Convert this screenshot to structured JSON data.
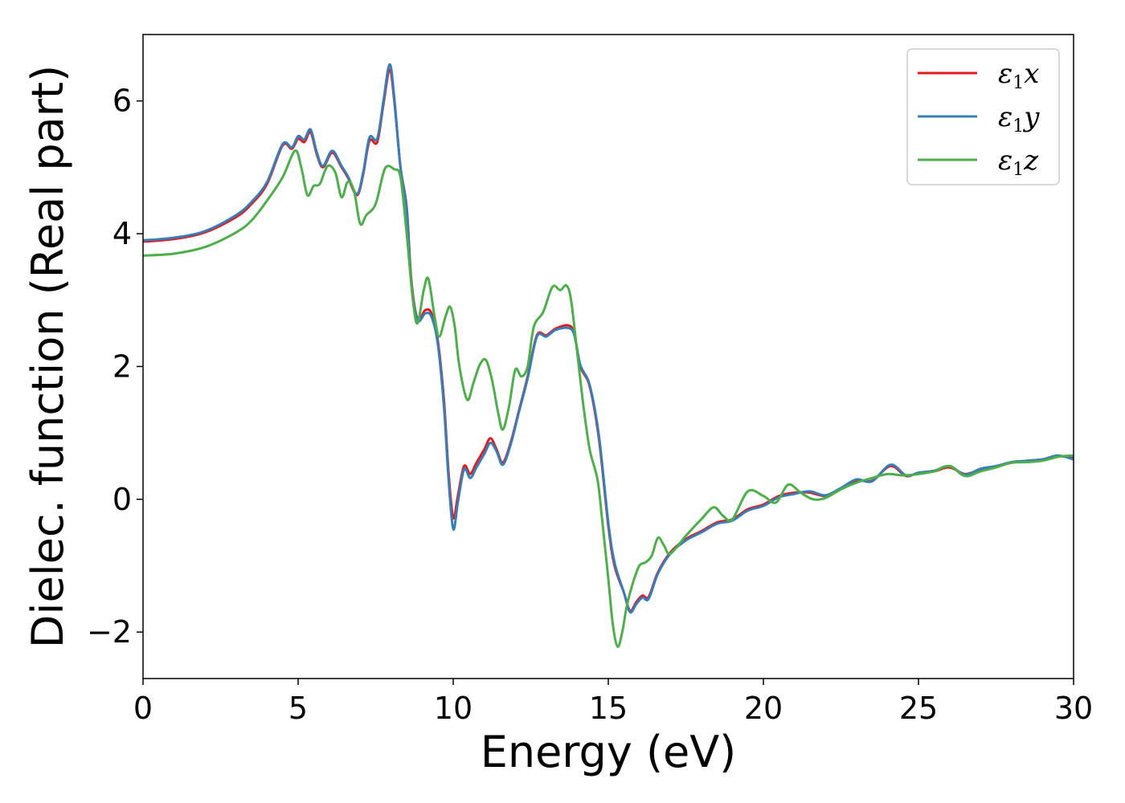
{
  "chart_data": {
    "type": "line",
    "xlabel": "Energy (eV)",
    "ylabel": "Dielec. function (Real part)",
    "xlim": [
      0,
      30
    ],
    "ylim": [
      -2.7,
      7.0
    ],
    "xticks": [
      0,
      5,
      10,
      15,
      20,
      25,
      30
    ],
    "yticks": [
      -2,
      0,
      2,
      4,
      6
    ],
    "xtick_labels": [
      "0",
      "5",
      "10",
      "15",
      "20",
      "25",
      "30"
    ],
    "ytick_labels": [
      "−2",
      "0",
      "2",
      "4",
      "6"
    ],
    "grid": false,
    "legend_position": "top-right",
    "series": [
      {
        "name": "ε1x",
        "legend_main": "ε",
        "legend_sub": "1",
        "legend_var": "x",
        "color": "#e41a1c",
        "points": [
          [
            0,
            3.88
          ],
          [
            1,
            3.92
          ],
          [
            2,
            4.02
          ],
          [
            3,
            4.25
          ],
          [
            3.5,
            4.45
          ],
          [
            4,
            4.75
          ],
          [
            4.5,
            5.33
          ],
          [
            4.8,
            5.28
          ],
          [
            5.0,
            5.43
          ],
          [
            5.2,
            5.38
          ],
          [
            5.4,
            5.53
          ],
          [
            5.6,
            5.2
          ],
          [
            5.8,
            5.0
          ],
          [
            6.1,
            5.22
          ],
          [
            6.4,
            5.0
          ],
          [
            6.6,
            4.85
          ],
          [
            6.9,
            4.58
          ],
          [
            7.1,
            4.9
          ],
          [
            7.3,
            5.4
          ],
          [
            7.55,
            5.38
          ],
          [
            7.75,
            5.95
          ],
          [
            7.95,
            6.47
          ],
          [
            8.1,
            6.0
          ],
          [
            8.3,
            5.0
          ],
          [
            8.5,
            4.4
          ],
          [
            8.65,
            3.3
          ],
          [
            8.85,
            2.72
          ],
          [
            9.1,
            2.85
          ],
          [
            9.3,
            2.8
          ],
          [
            9.5,
            2.4
          ],
          [
            9.7,
            1.5
          ],
          [
            9.85,
            0.4
          ],
          [
            10.0,
            -0.28
          ],
          [
            10.15,
            0.05
          ],
          [
            10.35,
            0.5
          ],
          [
            10.55,
            0.38
          ],
          [
            10.75,
            0.55
          ],
          [
            11.0,
            0.75
          ],
          [
            11.2,
            0.92
          ],
          [
            11.4,
            0.75
          ],
          [
            11.6,
            0.55
          ],
          [
            11.85,
            0.85
          ],
          [
            12.1,
            1.3
          ],
          [
            12.4,
            1.85
          ],
          [
            12.7,
            2.47
          ],
          [
            13.0,
            2.47
          ],
          [
            13.3,
            2.57
          ],
          [
            13.7,
            2.62
          ],
          [
            13.9,
            2.5
          ],
          [
            14.1,
            2.0
          ],
          [
            14.4,
            1.7
          ],
          [
            14.7,
            0.9
          ],
          [
            15.0,
            -0.4
          ],
          [
            15.2,
            -1.0
          ],
          [
            15.5,
            -1.4
          ],
          [
            15.7,
            -1.68
          ],
          [
            15.9,
            -1.55
          ],
          [
            16.1,
            -1.45
          ],
          [
            16.3,
            -1.47
          ],
          [
            16.6,
            -1.1
          ],
          [
            17.0,
            -0.8
          ],
          [
            17.5,
            -0.6
          ],
          [
            18.0,
            -0.48
          ],
          [
            18.5,
            -0.35
          ],
          [
            19.0,
            -0.3
          ],
          [
            19.5,
            -0.15
          ],
          [
            20.0,
            -0.08
          ],
          [
            20.5,
            0.05
          ],
          [
            21.0,
            0.1
          ],
          [
            21.5,
            0.1
          ],
          [
            22.0,
            0.05
          ],
          [
            22.5,
            0.15
          ],
          [
            23.0,
            0.28
          ],
          [
            23.5,
            0.28
          ],
          [
            24.1,
            0.5
          ],
          [
            24.6,
            0.35
          ],
          [
            25.0,
            0.4
          ],
          [
            25.5,
            0.42
          ],
          [
            26.0,
            0.48
          ],
          [
            26.5,
            0.38
          ],
          [
            27.0,
            0.45
          ],
          [
            27.5,
            0.5
          ],
          [
            28.0,
            0.55
          ],
          [
            28.5,
            0.58
          ],
          [
            29.0,
            0.6
          ],
          [
            29.5,
            0.65
          ],
          [
            30,
            0.62
          ]
        ]
      },
      {
        "name": "ε1y",
        "legend_main": "ε",
        "legend_sub": "1",
        "legend_var": "y",
        "color": "#377eb8",
        "points": [
          [
            0,
            3.9
          ],
          [
            1,
            3.94
          ],
          [
            2,
            4.04
          ],
          [
            3,
            4.28
          ],
          [
            3.5,
            4.48
          ],
          [
            4,
            4.78
          ],
          [
            4.5,
            5.35
          ],
          [
            4.8,
            5.3
          ],
          [
            5.0,
            5.47
          ],
          [
            5.2,
            5.42
          ],
          [
            5.4,
            5.57
          ],
          [
            5.6,
            5.23
          ],
          [
            5.8,
            5.02
          ],
          [
            6.1,
            5.25
          ],
          [
            6.4,
            5.02
          ],
          [
            6.6,
            4.87
          ],
          [
            6.9,
            4.6
          ],
          [
            7.1,
            4.93
          ],
          [
            7.3,
            5.45
          ],
          [
            7.55,
            5.43
          ],
          [
            7.75,
            6.0
          ],
          [
            7.95,
            6.55
          ],
          [
            8.1,
            6.05
          ],
          [
            8.3,
            5.0
          ],
          [
            8.5,
            4.38
          ],
          [
            8.65,
            3.25
          ],
          [
            8.85,
            2.7
          ],
          [
            9.1,
            2.8
          ],
          [
            9.3,
            2.75
          ],
          [
            9.5,
            2.35
          ],
          [
            9.7,
            1.4
          ],
          [
            9.85,
            0.3
          ],
          [
            10.0,
            -0.45
          ],
          [
            10.15,
            -0.05
          ],
          [
            10.35,
            0.45
          ],
          [
            10.55,
            0.32
          ],
          [
            10.75,
            0.48
          ],
          [
            11.0,
            0.68
          ],
          [
            11.2,
            0.85
          ],
          [
            11.4,
            0.72
          ],
          [
            11.6,
            0.52
          ],
          [
            11.85,
            0.82
          ],
          [
            12.1,
            1.28
          ],
          [
            12.4,
            1.82
          ],
          [
            12.7,
            2.45
          ],
          [
            13.0,
            2.45
          ],
          [
            13.3,
            2.55
          ],
          [
            13.7,
            2.58
          ],
          [
            13.9,
            2.48
          ],
          [
            14.1,
            2.02
          ],
          [
            14.4,
            1.72
          ],
          [
            14.7,
            0.95
          ],
          [
            15.0,
            -0.35
          ],
          [
            15.2,
            -0.95
          ],
          [
            15.5,
            -1.4
          ],
          [
            15.7,
            -1.7
          ],
          [
            15.9,
            -1.58
          ],
          [
            16.1,
            -1.48
          ],
          [
            16.3,
            -1.5
          ],
          [
            16.6,
            -1.12
          ],
          [
            17.0,
            -0.82
          ],
          [
            17.5,
            -0.62
          ],
          [
            18.0,
            -0.5
          ],
          [
            18.5,
            -0.37
          ],
          [
            19.0,
            -0.32
          ],
          [
            19.5,
            -0.17
          ],
          [
            20.0,
            -0.1
          ],
          [
            20.5,
            0.03
          ],
          [
            21.0,
            0.08
          ],
          [
            21.5,
            0.12
          ],
          [
            22.0,
            0.06
          ],
          [
            22.5,
            0.17
          ],
          [
            23.0,
            0.3
          ],
          [
            23.5,
            0.27
          ],
          [
            24.1,
            0.52
          ],
          [
            24.6,
            0.36
          ],
          [
            25.0,
            0.4
          ],
          [
            25.5,
            0.43
          ],
          [
            26.0,
            0.5
          ],
          [
            26.5,
            0.37
          ],
          [
            27.0,
            0.46
          ],
          [
            27.5,
            0.5
          ],
          [
            28.0,
            0.56
          ],
          [
            28.5,
            0.58
          ],
          [
            29.0,
            0.6
          ],
          [
            29.5,
            0.66
          ],
          [
            30,
            0.6
          ]
        ]
      },
      {
        "name": "ε1z",
        "legend_main": "ε",
        "legend_sub": "1",
        "legend_var": "z",
        "color": "#4daf4a",
        "points": [
          [
            0,
            3.67
          ],
          [
            1,
            3.7
          ],
          [
            2,
            3.8
          ],
          [
            3,
            4.02
          ],
          [
            3.5,
            4.2
          ],
          [
            4,
            4.5
          ],
          [
            4.5,
            4.85
          ],
          [
            4.9,
            5.25
          ],
          [
            5.1,
            5.0
          ],
          [
            5.3,
            4.58
          ],
          [
            5.5,
            4.72
          ],
          [
            5.7,
            4.75
          ],
          [
            5.95,
            5.02
          ],
          [
            6.2,
            4.92
          ],
          [
            6.4,
            4.55
          ],
          [
            6.6,
            4.78
          ],
          [
            6.8,
            4.65
          ],
          [
            7.0,
            4.15
          ],
          [
            7.2,
            4.28
          ],
          [
            7.5,
            4.45
          ],
          [
            7.8,
            4.98
          ],
          [
            8.1,
            4.97
          ],
          [
            8.3,
            4.85
          ],
          [
            8.5,
            4.0
          ],
          [
            8.7,
            3.0
          ],
          [
            8.85,
            2.65
          ],
          [
            9.05,
            3.15
          ],
          [
            9.2,
            3.32
          ],
          [
            9.4,
            2.75
          ],
          [
            9.55,
            2.45
          ],
          [
            9.75,
            2.75
          ],
          [
            9.9,
            2.9
          ],
          [
            10.05,
            2.6
          ],
          [
            10.2,
            2.0
          ],
          [
            10.45,
            1.5
          ],
          [
            10.65,
            1.75
          ],
          [
            10.85,
            2.02
          ],
          [
            11.05,
            2.1
          ],
          [
            11.25,
            1.8
          ],
          [
            11.45,
            1.3
          ],
          [
            11.6,
            1.05
          ],
          [
            11.8,
            1.4
          ],
          [
            12.0,
            1.95
          ],
          [
            12.2,
            1.85
          ],
          [
            12.4,
            2.0
          ],
          [
            12.6,
            2.6
          ],
          [
            12.9,
            2.82
          ],
          [
            13.2,
            3.2
          ],
          [
            13.45,
            3.15
          ],
          [
            13.65,
            3.22
          ],
          [
            13.8,
            3.0
          ],
          [
            14.0,
            2.2
          ],
          [
            14.2,
            1.4
          ],
          [
            14.4,
            0.75
          ],
          [
            14.65,
            0.3
          ],
          [
            14.8,
            -0.3
          ],
          [
            15.0,
            -1.2
          ],
          [
            15.15,
            -1.9
          ],
          [
            15.3,
            -2.22
          ],
          [
            15.45,
            -2.0
          ],
          [
            15.6,
            -1.6
          ],
          [
            15.8,
            -1.25
          ],
          [
            16.0,
            -1.0
          ],
          [
            16.2,
            -0.95
          ],
          [
            16.4,
            -0.85
          ],
          [
            16.6,
            -0.58
          ],
          [
            16.8,
            -0.7
          ],
          [
            17.0,
            -0.82
          ],
          [
            17.5,
            -0.55
          ],
          [
            18.0,
            -0.3
          ],
          [
            18.4,
            -0.12
          ],
          [
            18.7,
            -0.25
          ],
          [
            19.0,
            -0.3
          ],
          [
            19.5,
            0.12
          ],
          [
            20.0,
            0.05
          ],
          [
            20.4,
            -0.05
          ],
          [
            20.8,
            0.22
          ],
          [
            21.2,
            0.1
          ],
          [
            21.6,
            0.0
          ],
          [
            22.0,
            0.02
          ],
          [
            22.5,
            0.15
          ],
          [
            23.0,
            0.25
          ],
          [
            23.5,
            0.32
          ],
          [
            24.0,
            0.38
          ],
          [
            24.5,
            0.36
          ],
          [
            25.0,
            0.38
          ],
          [
            25.5,
            0.42
          ],
          [
            26.0,
            0.5
          ],
          [
            26.5,
            0.35
          ],
          [
            27.0,
            0.42
          ],
          [
            27.5,
            0.48
          ],
          [
            28.0,
            0.55
          ],
          [
            28.5,
            0.56
          ],
          [
            29.0,
            0.58
          ],
          [
            29.5,
            0.64
          ],
          [
            30,
            0.66
          ]
        ]
      }
    ]
  }
}
